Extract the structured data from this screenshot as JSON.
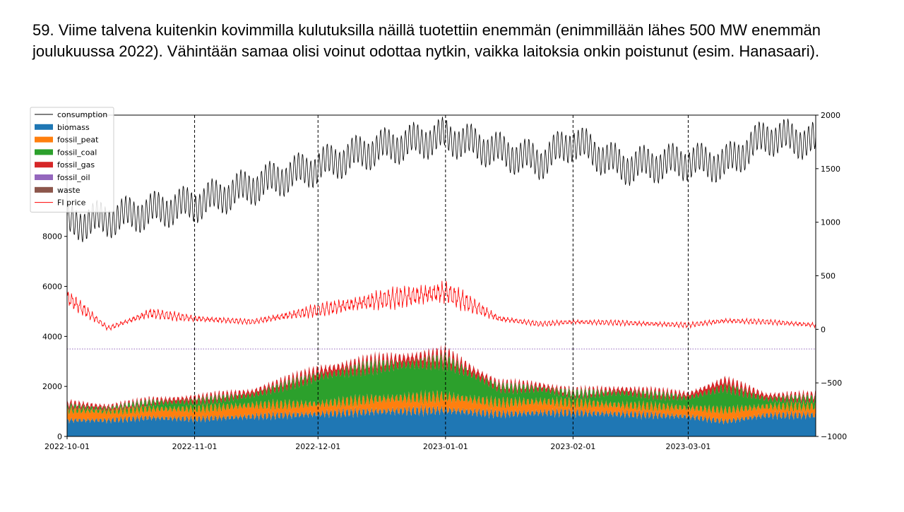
{
  "slide": {
    "title": "59. Viime talvena kuitenkin kovimmilla kulutuksilla näillä tuotettiin enemmän (enimmillään lähes 500 MW enemmän joulukuussa 2022). Vähintään samaa olisi voinut odottaa nytkin, vaikka laitoksia onkin poistunut (esim. Hanasaari)."
  },
  "chart_data": {
    "type": "area",
    "title": "",
    "x_ticks": [
      "2022-10-01",
      "2022-11-01",
      "2022-12-01",
      "2023-01-01",
      "2023-02-01",
      "2023-03-01"
    ],
    "x_range_days": [
      0,
      182
    ],
    "vlines_days": [
      31,
      61,
      92,
      123,
      151
    ],
    "y_left": {
      "ticks": [
        0,
        2000,
        4000,
        6000,
        8000
      ],
      "range": [
        0,
        12850
      ]
    },
    "y_right": {
      "ticks": [
        -1000,
        -500,
        0,
        500,
        1000,
        1500,
        2000
      ],
      "range": [
        -1000,
        2000
      ]
    },
    "hline_left": 3500,
    "legend": {
      "position": "top-left",
      "entries": [
        {
          "label": "consumption",
          "kind": "line",
          "color": "#000000"
        },
        {
          "label": "biomass",
          "kind": "patch",
          "color": "#1f77b4"
        },
        {
          "label": "fossil_peat",
          "kind": "patch",
          "color": "#ff7f0e"
        },
        {
          "label": "fossil_coal",
          "kind": "patch",
          "color": "#2ca02c"
        },
        {
          "label": "fossil_gas",
          "kind": "patch",
          "color": "#d62728"
        },
        {
          "label": "fossil_oil",
          "kind": "patch",
          "color": "#9467bd"
        },
        {
          "label": "waste",
          "kind": "patch",
          "color": "#8c564b"
        },
        {
          "label": "FI price",
          "kind": "line",
          "color": "#ff0000"
        }
      ]
    },
    "series_axis": {
      "consumption": "left",
      "biomass": "left",
      "fossil_peat": "left",
      "fossil_coal": "left",
      "fossil_gas": "left",
      "FI price": "right"
    },
    "days": [
      0,
      10,
      20,
      31,
      45,
      61,
      75,
      92,
      105,
      115,
      123,
      135,
      151,
      160,
      170,
      182
    ],
    "consumption": [
      8500,
      8700,
      9000,
      9300,
      10000,
      10800,
      11500,
      12000,
      11400,
      11000,
      11800,
      10800,
      11000,
      10900,
      12000,
      11800
    ],
    "biomass": [
      650,
      650,
      750,
      700,
      800,
      900,
      1000,
      1050,
      900,
      950,
      950,
      900,
      800,
      600,
      850,
      850
    ],
    "fossil_peat": [
      400,
      350,
      350,
      400,
      450,
      400,
      500,
      550,
      450,
      450,
      400,
      350,
      350,
      450,
      350,
      350
    ],
    "fossil_coal": [
      150,
      100,
      250,
      300,
      400,
      1100,
      1300,
      1400,
      600,
      500,
      350,
      500,
      400,
      900,
      300,
      300
    ],
    "fossil_gas": [
      150,
      100,
      100,
      150,
      150,
      250,
      250,
      300,
      150,
      150,
      100,
      150,
      150,
      300,
      150,
      150
    ],
    "fi_price": [
      300,
      10,
      150,
      100,
      70,
      180,
      270,
      350,
      100,
      50,
      70,
      60,
      40,
      80,
      70,
      40
    ]
  }
}
